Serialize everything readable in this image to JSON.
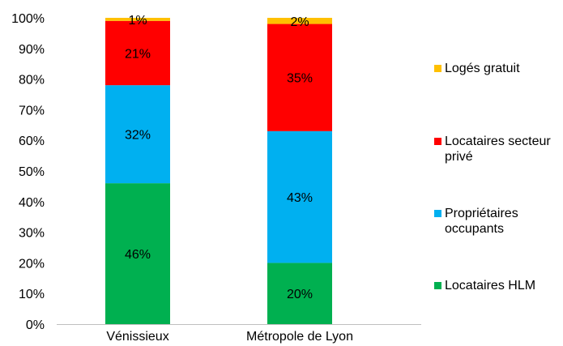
{
  "chart_data": {
    "type": "bar",
    "stacked": true,
    "percent_axis": true,
    "categories": [
      "Vénissieux",
      "Métropole de Lyon"
    ],
    "series": [
      {
        "name": "Locataires HLM",
        "color": "#00B050",
        "values": [
          46,
          20
        ],
        "labels": [
          "46%",
          "20%"
        ]
      },
      {
        "name": "Propriétaires occupants",
        "color": "#00B0F0",
        "values": [
          32,
          43
        ],
        "labels": [
          "32%",
          "43%"
        ]
      },
      {
        "name": "Locataires secteur privé",
        "color": "#FF0000",
        "values": [
          21,
          35
        ],
        "labels": [
          "21%",
          "35%"
        ]
      },
      {
        "name": "Logés gratuit",
        "color": "#FFC000",
        "values": [
          1,
          2
        ],
        "labels": [
          "1%",
          "2%"
        ]
      }
    ],
    "ylim": [
      0,
      100
    ],
    "yticks": [
      "0%",
      "10%",
      "20%",
      "30%",
      "40%",
      "50%",
      "60%",
      "70%",
      "80%",
      "90%",
      "100%"
    ],
    "grid": false,
    "legend_position": "right"
  },
  "legend": {
    "items": [
      {
        "label": "Logés gratuit",
        "color": "#FFC000"
      },
      {
        "label": "Locataires secteur privé",
        "color": "#FF0000"
      },
      {
        "label": "Propriétaires occupants",
        "color": "#00B0F0"
      },
      {
        "label": "Locataires HLM",
        "color": "#00B050"
      }
    ]
  }
}
